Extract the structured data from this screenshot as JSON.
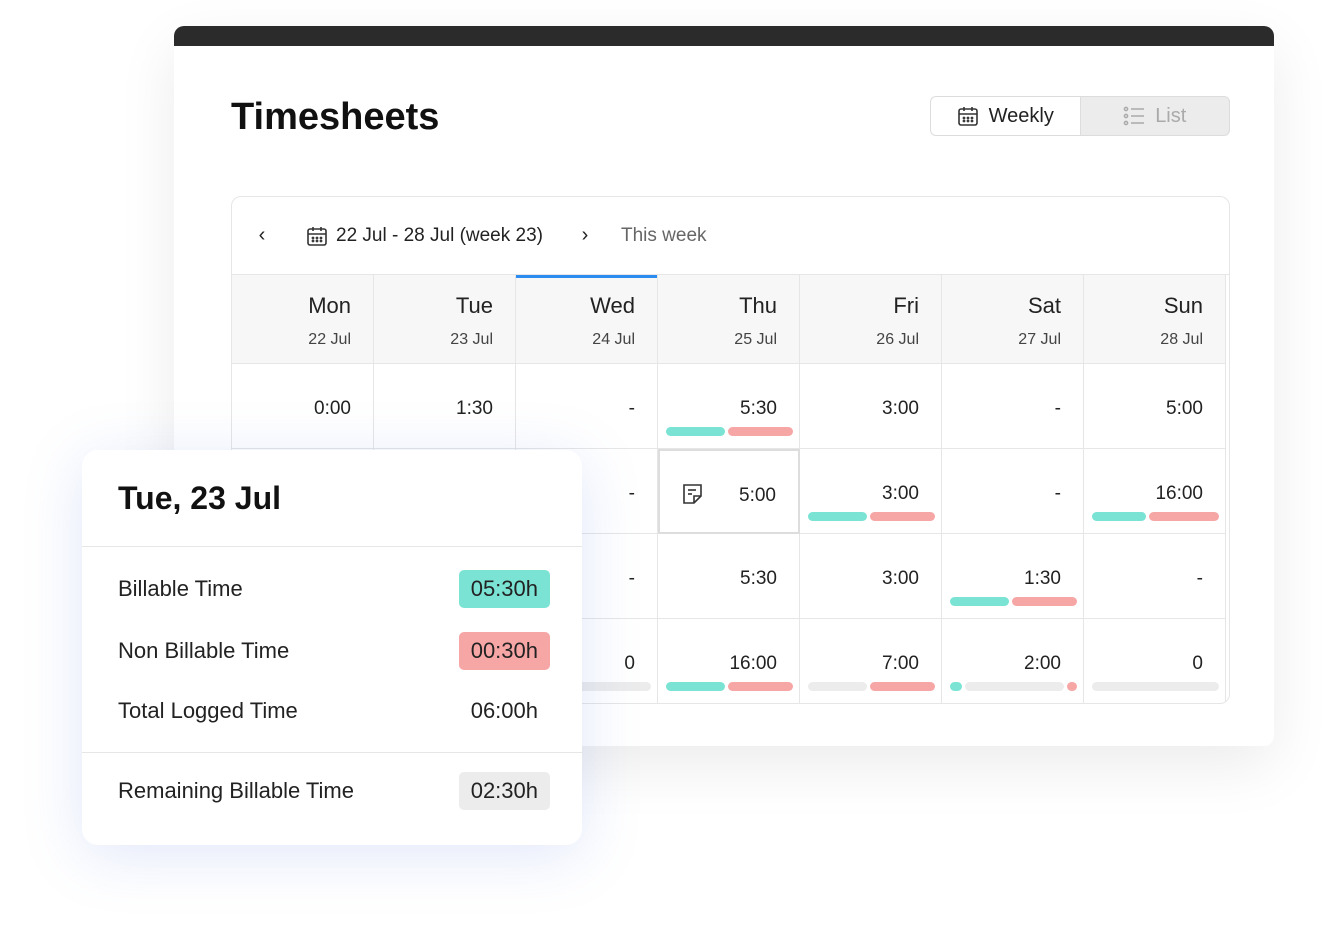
{
  "title": "Timesheets",
  "view_toggle": {
    "weekly": "Weekly",
    "list": "List",
    "active": "Weekly"
  },
  "week_nav": {
    "range": "22 Jul - 28 Jul (week 23)",
    "this_week": "This week"
  },
  "colors": {
    "billable": "#7ae3d4",
    "non_billable": "#f7a6a6",
    "empty": "#ececec",
    "selected_tab": "#2d8cf0"
  },
  "days": [
    {
      "day": "Mon",
      "date": "22 Jul"
    },
    {
      "day": "Tue",
      "date": "23 Jul"
    },
    {
      "day": "Wed",
      "date": "24 Jul",
      "selected": true
    },
    {
      "day": "Thu",
      "date": "25 Jul"
    },
    {
      "day": "Fri",
      "date": "26 Jul"
    },
    {
      "day": "Sat",
      "date": "27 Jul"
    },
    {
      "day": "Sun",
      "date": "28 Jul"
    }
  ],
  "rows": [
    [
      {
        "v": "0:00"
      },
      {
        "v": "1:30"
      },
      {
        "v": "-"
      },
      {
        "v": "5:30",
        "bars": [
          [
            "billable",
            1
          ],
          [
            "non_billable",
            1.1
          ]
        ]
      },
      {
        "v": "3:00"
      },
      {
        "v": "-"
      },
      {
        "v": "5:00"
      }
    ],
    [
      {
        "v": ""
      },
      {
        "v": ""
      },
      {
        "v": "-"
      },
      {
        "v": "5:00",
        "note": true,
        "selected": true
      },
      {
        "v": "3:00",
        "bars": [
          [
            "billable",
            1
          ],
          [
            "non_billable",
            1.1
          ]
        ]
      },
      {
        "v": "-"
      },
      {
        "v": "16:00",
        "bars": [
          [
            "billable",
            1
          ],
          [
            "non_billable",
            1.3
          ]
        ]
      }
    ],
    [
      {
        "v": ""
      },
      {
        "v": ""
      },
      {
        "v": "-"
      },
      {
        "v": "5:30"
      },
      {
        "v": "3:00"
      },
      {
        "v": "1:30",
        "bars": [
          [
            "billable",
            1
          ],
          [
            "non_billable",
            1.1
          ]
        ]
      },
      {
        "v": "-"
      }
    ],
    [
      {
        "v": ""
      },
      {
        "v": ""
      },
      {
        "v": "0",
        "bars": [
          [
            "empty",
            1
          ]
        ]
      },
      {
        "v": "16:00",
        "bars": [
          [
            "billable",
            1
          ],
          [
            "non_billable",
            1.1
          ]
        ]
      },
      {
        "v": "7:00",
        "bars": [
          [
            "empty",
            1
          ],
          [
            "non_billable",
            1.1
          ]
        ]
      },
      {
        "v": "2:00",
        "bars": [
          [
            "billable",
            0.15
          ],
          [
            "empty",
            1.2
          ],
          [
            "non_billable",
            0.12
          ]
        ]
      },
      {
        "v": "0",
        "bars": [
          [
            "empty",
            1
          ]
        ]
      }
    ]
  ],
  "popup": {
    "title": "Tue, 23 Jul",
    "billable_label": "Billable Time",
    "billable_value": "05:30h",
    "non_billable_label": "Non Billable Time",
    "non_billable_value": "00:30h",
    "total_label": "Total Logged Time",
    "total_value": "06:00h",
    "remaining_label": "Remaining Billable Time",
    "remaining_value": "02:30h"
  }
}
